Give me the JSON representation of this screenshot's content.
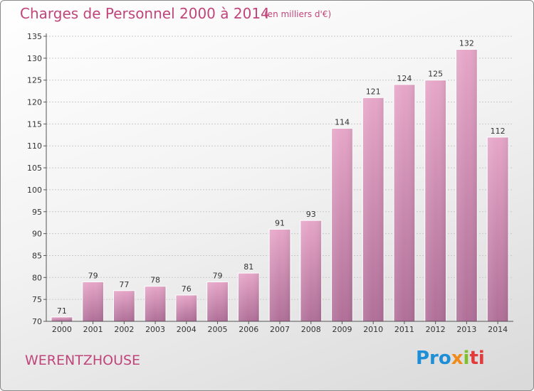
{
  "chart_data": {
    "type": "bar",
    "title": "Charges de Personnel 2000 à 2014",
    "subtitle": "(en milliers d'€)",
    "categories": [
      "2000",
      "2001",
      "2002",
      "2003",
      "2004",
      "2005",
      "2006",
      "2007",
      "2008",
      "2009",
      "2010",
      "2011",
      "2012",
      "2013",
      "2014"
    ],
    "values": [
      71,
      79,
      77,
      78,
      76,
      79,
      81,
      91,
      93,
      114,
      121,
      124,
      125,
      132,
      112
    ],
    "ylim": [
      70,
      135
    ],
    "yticks": [
      70,
      75,
      80,
      85,
      90,
      95,
      100,
      105,
      110,
      115,
      120,
      125,
      130,
      135
    ],
    "grid": "horizontal",
    "bar_color": "#d98fb6"
  },
  "footer": {
    "commune": "WERENTZHOUSE",
    "logo": [
      "Pro",
      "x",
      "i",
      "ti"
    ]
  }
}
